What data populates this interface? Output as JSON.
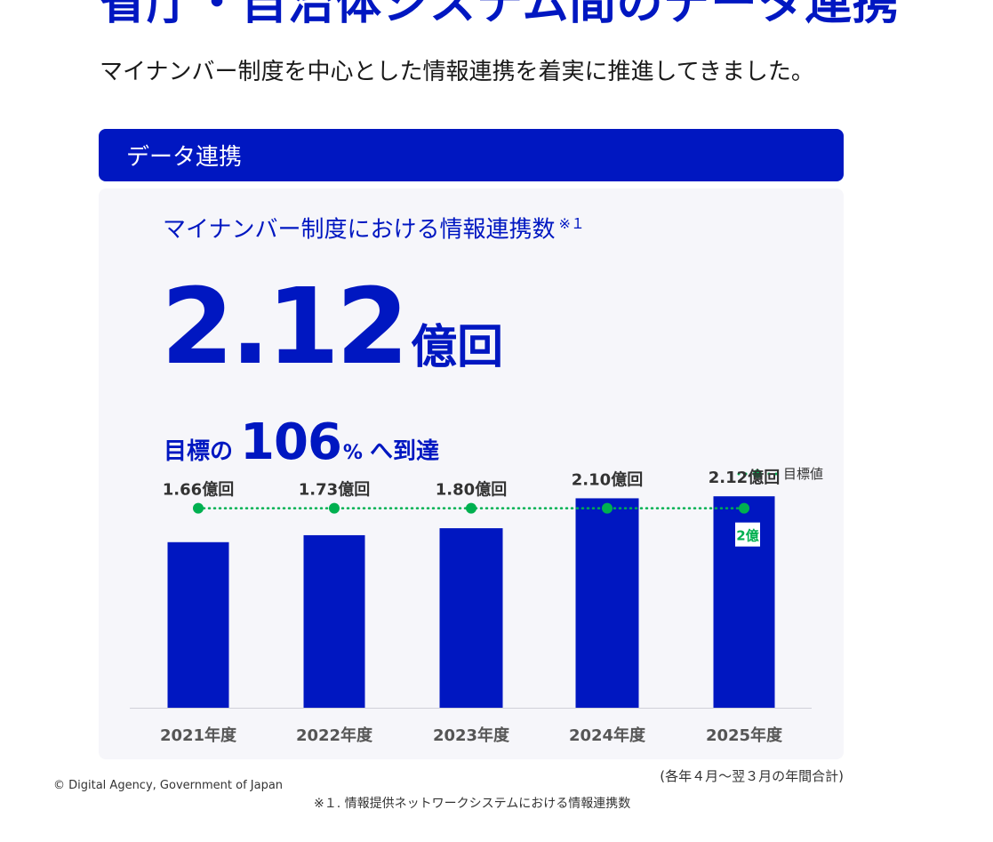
{
  "heading": "省庁・自治体システム間のデータ連携",
  "lead": "マイナンバー制度を中心とした情報連携を着実に推進してきました。",
  "section_label": "データ連携",
  "card": {
    "title": "マイナンバー制度における情報連携数",
    "title_note": "※１",
    "big_value": "2.12",
    "big_unit": "億回",
    "goal_prefix": "目標の",
    "goal_value": "106",
    "goal_percent": "%",
    "goal_suffix": "へ到達"
  },
  "legend_label": "目標値",
  "target_label": "2億",
  "period_note": "(各年４月～翌３月の年間合計)",
  "copyright": "© Digital Agency, Government of Japan",
  "footnote": "※１. 情報提供ネットワークシステムにおける情報連携数",
  "colors": {
    "bar": "#0017c1",
    "target": "#00b050",
    "text": "#333333"
  },
  "chart_data": {
    "type": "bar",
    "categories": [
      "2021年度",
      "2022年度",
      "2023年度",
      "2024年度",
      "2025年度"
    ],
    "values": [
      1.66,
      1.73,
      1.8,
      2.1,
      2.12
    ],
    "value_labels": [
      "1.66億回",
      "1.73億回",
      "1.80億回",
      "2.10億回",
      "2.12億回"
    ],
    "series": [
      {
        "name": "目標値",
        "type": "line",
        "style": "dotted",
        "values": [
          2,
          2,
          2,
          2,
          2
        ]
      }
    ],
    "unit": "億回",
    "ylim": [
      0,
      2.3
    ],
    "grid": false,
    "legend": "top-right"
  }
}
